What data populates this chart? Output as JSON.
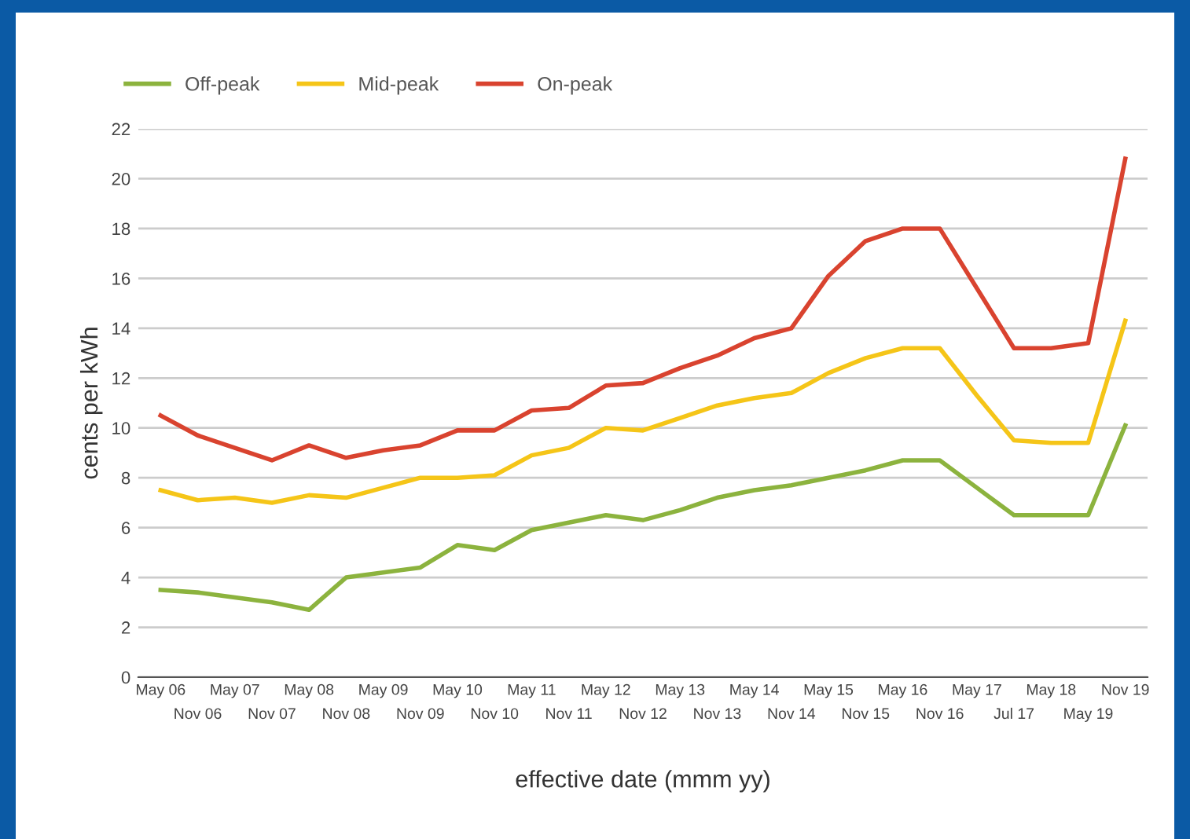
{
  "chart_data": {
    "type": "line",
    "xlabel": "effective date (mmm yy)",
    "ylabel": "cents per kWh",
    "categories": [
      "May 06",
      "Nov 06",
      "May 07",
      "Nov 07",
      "May 08",
      "Nov 08",
      "May 09",
      "Nov 09",
      "May 10",
      "Nov 10",
      "May 11",
      "Nov 11",
      "May 12",
      "Nov 12",
      "May 13",
      "Nov 13",
      "May 14",
      "Nov 14",
      "May 15",
      "Nov 15",
      "May 16",
      "Nov 16",
      "May 17",
      "Jul 17",
      "May 18",
      "May 19",
      "Nov 19"
    ],
    "series": [
      {
        "name": "Off-peak",
        "color": "#8cb33e",
        "values": [
          3.5,
          3.4,
          3.2,
          3.0,
          2.7,
          4.0,
          4.2,
          4.4,
          5.3,
          5.1,
          5.9,
          6.2,
          6.5,
          6.3,
          6.7,
          7.2,
          7.5,
          7.7,
          8.0,
          8.3,
          8.7,
          8.7,
          7.6,
          6.5,
          6.5,
          6.5,
          10.1
        ]
      },
      {
        "name": "Mid-peak",
        "color": "#f5c518",
        "values": [
          7.5,
          7.1,
          7.2,
          7.0,
          7.3,
          7.2,
          7.6,
          8.0,
          8.0,
          8.1,
          8.9,
          9.2,
          10.0,
          9.9,
          10.4,
          10.9,
          11.2,
          11.4,
          12.2,
          12.8,
          13.2,
          13.2,
          11.3,
          9.5,
          9.4,
          9.4,
          14.3
        ]
      },
      {
        "name": "On-peak",
        "color": "#d9432f",
        "values": [
          10.5,
          9.7,
          9.2,
          8.7,
          9.3,
          8.8,
          9.1,
          9.3,
          9.9,
          9.9,
          10.7,
          10.8,
          11.7,
          11.8,
          12.4,
          12.9,
          13.6,
          14.0,
          16.1,
          17.5,
          18.0,
          18.0,
          15.6,
          13.2,
          13.2,
          13.4,
          20.8
        ]
      }
    ],
    "ylim": [
      0,
      22
    ],
    "yticks": [
      0,
      2,
      4,
      6,
      8,
      10,
      12,
      14,
      16,
      18,
      20,
      22
    ],
    "grid": "y",
    "legend": "top left",
    "marker": "none",
    "line_style": "solid"
  }
}
